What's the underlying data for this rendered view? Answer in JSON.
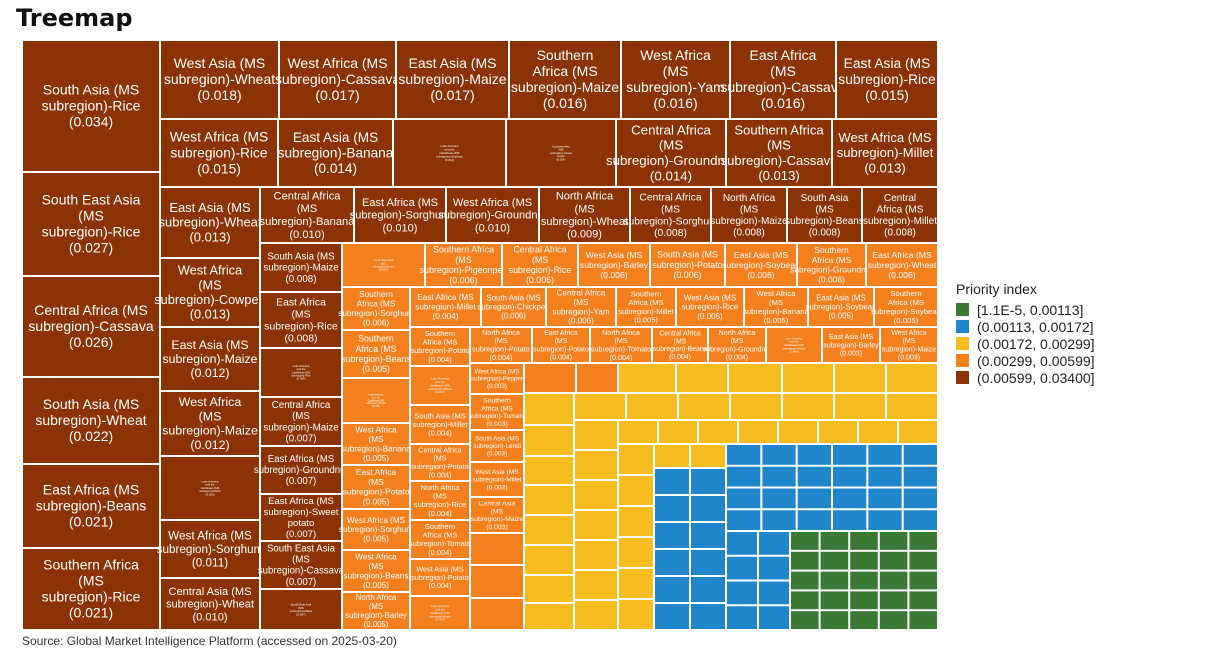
{
  "chart_data": {
    "type": "treemap",
    "title": "Treemap",
    "source": "Source: Global Market Intelligence Platform (accessed on 2025-03-20)",
    "legend": {
      "title": "Priority index",
      "placement": "right",
      "items": [
        {
          "label": "[1.1E-5, 0.00113]",
          "color": "#3a7a34"
        },
        {
          "label": "(0.00113, 0.00172]",
          "color": "#1f86cc"
        },
        {
          "label": "(0.00172, 0.00299]",
          "color": "#f7bc1f"
        },
        {
          "label": "(0.00299, 0.00599]",
          "color": "#f37f1d"
        },
        {
          "label": "(0.00599, 0.03400]",
          "color": "#8b3305"
        }
      ]
    },
    "labeled_cells": [
      {
        "name": "South Asia (MS subregion)-Rice",
        "value": 0.034
      },
      {
        "name": "South East Asia (MS subregion)-Rice",
        "value": 0.027
      },
      {
        "name": "Central Africa (MS subregion)-Cassava",
        "value": 0.026
      },
      {
        "name": "South Asia (MS subregion)-Wheat",
        "value": 0.022
      },
      {
        "name": "East Africa (MS subregion)-Beans",
        "value": 0.021
      },
      {
        "name": "Southern Africa (MS subregion)-Rice",
        "value": 0.021
      },
      {
        "name": "West Asia (MS subregion)-Wheat",
        "value": 0.018
      },
      {
        "name": "West Africa (MS subregion)-Cassava",
        "value": 0.017
      },
      {
        "name": "East Asia (MS subregion)-Maize",
        "value": 0.017
      },
      {
        "name": "Southern Africa (MS subregion)-Maize",
        "value": 0.016
      },
      {
        "name": "West Africa (MS subregion)-Yam",
        "value": 0.016
      },
      {
        "name": "East Africa (MS subregion)-Cassava",
        "value": 0.016
      },
      {
        "name": "East Asia (MS subregion)-Rice",
        "value": 0.015
      },
      {
        "name": "West Africa (MS subregion)-Rice",
        "value": 0.015
      },
      {
        "name": "East Asia (MS subregion)-Banana",
        "value": 0.014
      },
      {
        "name": "Latin America and the Caribbean (MS subregion)-Soybean",
        "value": 0.014
      },
      {
        "name": "Southern Asia (MS subregion)-Sweet potato",
        "value": 0.014
      },
      {
        "name": "Central Africa (MS subregion)-Groundnut",
        "value": 0.014
      },
      {
        "name": "Southern Africa (MS subregion)-Cassava",
        "value": 0.013
      },
      {
        "name": "West Africa (MS subregion)-Millet",
        "value": 0.013
      },
      {
        "name": "East Asia (MS subregion)-Wheat",
        "value": 0.013
      },
      {
        "name": "West Africa (MS subregion)-Cowpea",
        "value": 0.013
      },
      {
        "name": "East Asia (MS subregion)-Maize",
        "value": 0.012
      },
      {
        "name": "West Africa (MS subregion)-Maize",
        "value": 0.012
      },
      {
        "name": "Latin America and the Caribbean (MS subregion)-Maize",
        "value": 0.012
      },
      {
        "name": "West Africa (MS subregion)-Sorghum",
        "value": 0.011
      },
      {
        "name": "Central Asia (MS subregion)-Wheat",
        "value": 0.01
      },
      {
        "name": "Central Africa (MS subregion)-Banana",
        "value": 0.01
      },
      {
        "name": "East Africa (MS subregion)-Sorghum",
        "value": 0.01
      },
      {
        "name": "West Africa (MS subregion)-Groundnut",
        "value": 0.01
      },
      {
        "name": "North Africa (MS subregion)-Wheat",
        "value": 0.009
      },
      {
        "name": "Central Africa (MS subregion)-Sorghum",
        "value": 0.008
      },
      {
        "name": "North Africa (MS subregion)-Maize",
        "value": 0.008
      },
      {
        "name": "South Asia (MS subregion)-Beans",
        "value": 0.008
      },
      {
        "name": "Central Africa (MS subregion)-Millet",
        "value": 0.008
      },
      {
        "name": "South Asia (MS subregion)-Maize",
        "value": 0.008
      },
      {
        "name": "East Africa (MS subregion)-Rice",
        "value": 0.008
      },
      {
        "name": "Latin America and the Caribbean (MS subregion)-Rice",
        "value": 0.008
      },
      {
        "name": "Central Africa (MS subregion)-Maize",
        "value": 0.007
      },
      {
        "name": "East Africa (MS subregion)-Groundnut",
        "value": 0.007
      },
      {
        "name": "East Africa (MS subregion)-Sweet potato",
        "value": 0.007
      },
      {
        "name": "South East Asia (MS subregion)-Cassava",
        "value": 0.007
      },
      {
        "name": "South East Asia (MS subregion)-Maize",
        "value": 0.007
      },
      {
        "name": "South East Asia (MS subregion)-Beans",
        "value": 0.007
      },
      {
        "name": "Southern Africa (MS subregion)-Pigeonpea",
        "value": 0.006
      },
      {
        "name": "Central Africa (MS subregion)-Rice",
        "value": 0.006
      },
      {
        "name": "West Asia (MS subregion)-Barley",
        "value": 0.006
      },
      {
        "name": "South Asia (MS subregion)-Potato",
        "value": 0.006
      },
      {
        "name": "East Asia (MS subregion)-Soybean",
        "value": 0.006
      },
      {
        "name": "Southern Africa (MS subregion)-Groundnut",
        "value": 0.006
      },
      {
        "name": "East Africa (MS subregion)-Wheat",
        "value": 0.006
      },
      {
        "name": "Southern Africa (MS subregion)-Sorghum",
        "value": 0.006
      },
      {
        "name": "Southern Africa (MS subregion)-Beans",
        "value": 0.005
      },
      {
        "name": "Latin America and the Caribbean (MS subregion)-Potato",
        "value": 0.005
      },
      {
        "name": "West Africa (MS subregion)-Banana",
        "value": 0.005
      },
      {
        "name": "East Africa (MS subregion)-Potato",
        "value": 0.005
      },
      {
        "name": "West Africa (MS subregion)-Sorghum",
        "value": 0.005
      },
      {
        "name": "West Africa (MS subregion)-Beans",
        "value": 0.005
      },
      {
        "name": "North Africa (MS subregion)-Barley",
        "value": 0.005
      },
      {
        "name": "East Africa (MS subregion)-Millet",
        "value": 0.004
      },
      {
        "name": "South Asia (MS subregion)-Chickpea",
        "value": 0.006
      },
      {
        "name": "Central Africa (MS subregion)-Yam",
        "value": 0.006
      },
      {
        "name": "Southern Africa (MS subregion)-Millet",
        "value": 0.005
      },
      {
        "name": "West Asia (MS subregion)-Rice",
        "value": 0.005
      },
      {
        "name": "West Africa (MS subregion)-Banana",
        "value": 0.005
      },
      {
        "name": "East Asia (MS subregion)-Soybean",
        "value": 0.005
      },
      {
        "name": "Southern Africa (MS subregion)-Soybean",
        "value": 0.005
      },
      {
        "name": "Southern Africa (MS subregion)-Potato",
        "value": 0.004
      },
      {
        "name": "Latin America and the Caribbean (MS subregion)-Wheat",
        "value": 0.004
      },
      {
        "name": "South Asia (MS subregion)-Millet",
        "value": 0.004
      },
      {
        "name": "Central Africa (MS subregion)-Potato",
        "value": 0.004
      },
      {
        "name": "North Africa (MS subregion)-Rice",
        "value": 0.004
      },
      {
        "name": "Southern Africa (MS subregion)-Tomato",
        "value": 0.004
      },
      {
        "name": "West Asia (MS subregion)-Potato",
        "value": 0.004
      },
      {
        "name": "Latin America and the Caribbean (MS subregion)-Beans",
        "value": 0.004
      },
      {
        "name": "North Africa (MS subregion)-Potato",
        "value": 0.004
      },
      {
        "name": "East Africa (MS subregion)-Potato",
        "value": 0.004
      },
      {
        "name": "North Africa (MS subregion)-Tomato",
        "value": 0.004
      },
      {
        "name": "Central Africa (MS subregion)-Beans",
        "value": 0.004
      },
      {
        "name": "North Africa (MS subregion)-Groundnut",
        "value": 0.004
      },
      {
        "name": "Latin America and the Caribbean (MS subregion)-Potato",
        "value": 0.004
      },
      {
        "name": "East Asia (MS subregion)-Barley",
        "value": 0.003
      },
      {
        "name": "West Africa (MS subregion)-Maize",
        "value": 0.003
      },
      {
        "name": "West Africa (MS subregion)-Pepper",
        "value": 0.003
      },
      {
        "name": "Southern Africa (MS subregion)-Tomato",
        "value": 0.003
      },
      {
        "name": "South Asia (MS subregion)-Lentil",
        "value": 0.003
      },
      {
        "name": "West Asia (MS subregion)-Millet",
        "value": 0.003
      },
      {
        "name": "Central Asia (MS subregion)-Maize",
        "value": 0.003
      }
    ],
    "small_cells_count": {
      "orange": 28,
      "yellow": 44,
      "blue": 63,
      "green": 63
    }
  }
}
